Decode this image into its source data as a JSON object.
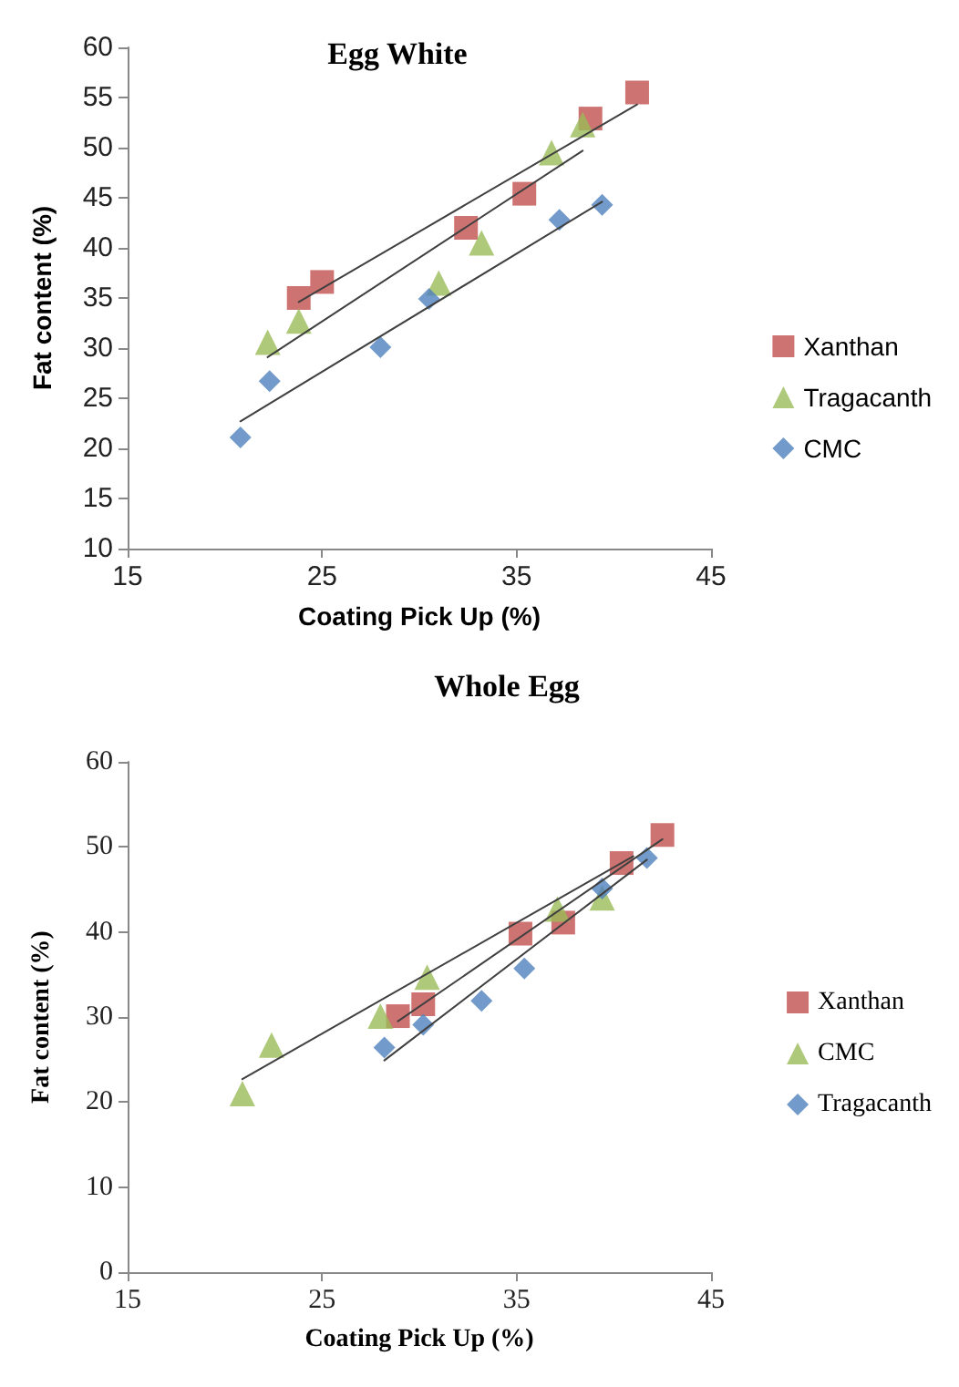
{
  "chart_data": [
    {
      "type": "scatter",
      "title": "Egg White",
      "xlabel": "Coating Pick Up (%)",
      "ylabel": "Fat content (%)",
      "xlim": [
        15,
        45
      ],
      "xticks": [
        15,
        25,
        35,
        45
      ],
      "ylim": [
        10,
        60
      ],
      "yticks": [
        10,
        15,
        20,
        25,
        30,
        35,
        40,
        45,
        50,
        55,
        60
      ],
      "grid": false,
      "legend": "right",
      "series": [
        {
          "name": "Xanthan",
          "color": "#c0504d",
          "marker": "square",
          "x": [
            23.8,
            25,
            32.4,
            35.4,
            38.8,
            41.2
          ],
          "values": [
            35,
            36.6,
            42,
            45.4,
            52.9,
            55.5
          ]
        },
        {
          "name": "Tragacanth",
          "color": "#9bbb59",
          "marker": "triangle",
          "x": [
            22.2,
            23.8,
            31,
            33.2,
            36.8,
            38.4
          ],
          "values": [
            30.6,
            32.7,
            36.5,
            40.5,
            49.5,
            52.3
          ]
        },
        {
          "name": "CMC",
          "color": "#4f81bd",
          "marker": "diamond",
          "x": [
            20.8,
            22.3,
            28,
            30.5,
            37.2,
            39.4
          ],
          "values": [
            21.1,
            26.7,
            30.1,
            34.9,
            42.8,
            44.3
          ]
        },
        {
          "type": "line",
          "color": "#404040",
          "marker": "none",
          "x": [
            23.8,
            41.2
          ],
          "values": [
            34.6,
            54.3
          ]
        },
        {
          "type": "line",
          "color": "#404040",
          "marker": "none",
          "x": [
            22.2,
            38.4
          ],
          "values": [
            29.1,
            49.7
          ]
        },
        {
          "type": "line",
          "color": "#404040",
          "marker": "none",
          "x": [
            20.8,
            39.4
          ],
          "values": [
            22.7,
            44.6
          ]
        }
      ]
    },
    {
      "type": "scatter",
      "title": "Whole Egg",
      "xlabel": "Coating Pick Up (%)",
      "ylabel": "Fat content (%)",
      "xlim": [
        15,
        45
      ],
      "xticks": [
        15,
        25,
        35,
        45
      ],
      "ylim": [
        0,
        60
      ],
      "yticks": [
        0,
        10,
        20,
        30,
        40,
        50,
        60
      ],
      "grid": false,
      "legend": "right",
      "series": [
        {
          "name": "Xanthan",
          "color": "#c0504d",
          "marker": "square",
          "x": [
            28.9,
            30.2,
            35.2,
            37.4,
            40.4,
            42.5
          ],
          "values": [
            30.1,
            31.5,
            39.8,
            41.1,
            48.1,
            51.4
          ]
        },
        {
          "name": "CMC",
          "color": "#9bbb59",
          "marker": "triangle",
          "x": [
            20.9,
            22.4,
            28,
            30.4,
            37.1,
            39.4
          ],
          "values": [
            21,
            26.7,
            30.1,
            34.7,
            42.7,
            44
          ]
        },
        {
          "name": "Tragacanth",
          "color": "#4f81bd",
          "marker": "diamond",
          "x": [
            28.2,
            30.2,
            33.2,
            35.4,
            39.4,
            41.7
          ],
          "values": [
            26.4,
            29.1,
            31.9,
            35.7,
            45.1,
            48.7
          ]
        },
        {
          "type": "line",
          "color": "#404040",
          "marker": "none",
          "x": [
            28.9,
            42.5
          ],
          "values": [
            29.5,
            50.9
          ]
        },
        {
          "type": "line",
          "color": "#404040",
          "marker": "none",
          "x": [
            20.9,
            41.0
          ],
          "values": [
            22.7,
            48.9
          ]
        },
        {
          "type": "line",
          "color": "#404040",
          "marker": "none",
          "x": [
            28.2,
            41.7
          ],
          "values": [
            24.9,
            48.5
          ]
        }
      ]
    }
  ]
}
